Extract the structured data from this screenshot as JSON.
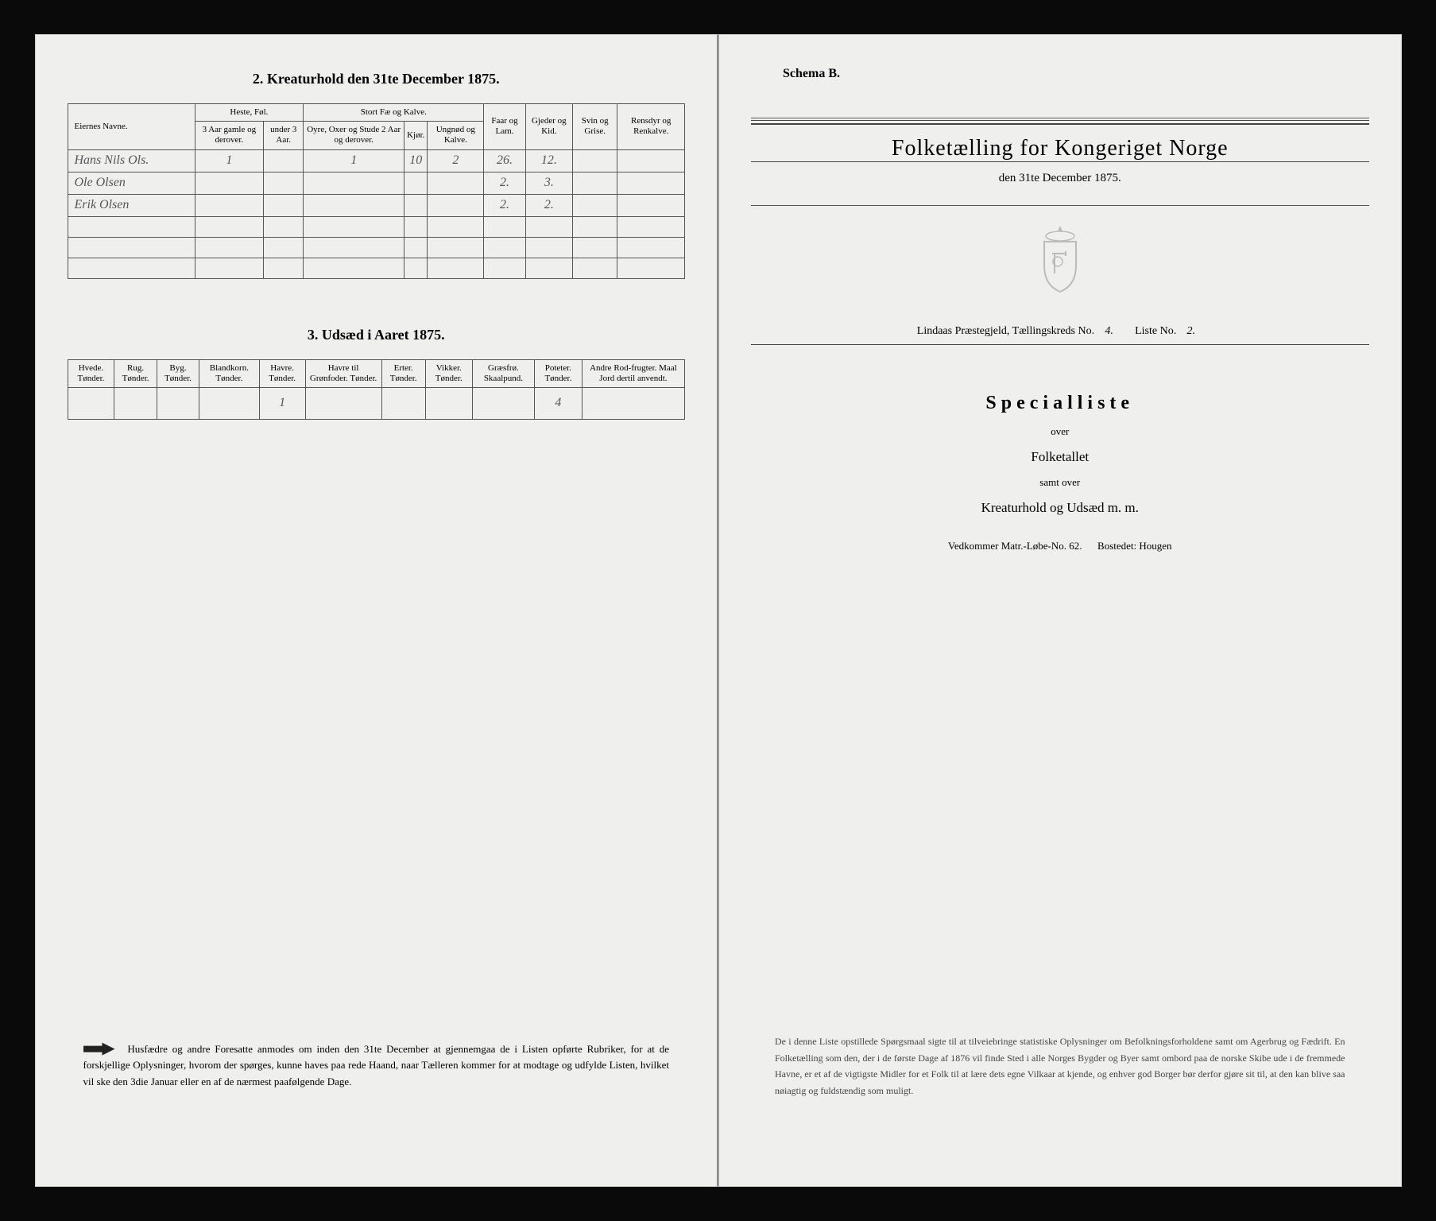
{
  "leftPage": {
    "table2": {
      "title": "2.  Kreaturhold den 31te December 1875.",
      "headers": {
        "owners": "Eiernes Navne.",
        "hesteGroup": "Heste, Føl.",
        "heste1": "3 Aar gamle og derover.",
        "heste2": "under 3 Aar.",
        "kvegGroup": "Stort Fæ og Kalve.",
        "kveg1": "Oyre, Oxer og Stude 2 Aar og derover.",
        "kveg2": "Kjør.",
        "kveg3": "Ungnød og Kalve.",
        "faar": "Faar og Lam.",
        "gjeder": "Gjeder og Kid.",
        "svin": "Svin og Grise.",
        "rensdyr": "Rensdyr og Renkalve."
      },
      "rows": [
        {
          "name": "Hans Nils Ols.",
          "h1": "1",
          "h2": "",
          "k1": "1",
          "k2": "10",
          "k3": "2",
          "faar": "26.",
          "gjed": "12.",
          "svin": "",
          "ren": ""
        },
        {
          "name": "Ole Olsen",
          "h1": "",
          "h2": "",
          "k1": "",
          "k2": "",
          "k3": "",
          "faar": "2.",
          "gjed": "3.",
          "svin": "",
          "ren": ""
        },
        {
          "name": "Erik Olsen",
          "h1": "",
          "h2": "",
          "k1": "",
          "k2": "",
          "k3": "",
          "faar": "2.",
          "gjed": "2.",
          "svin": "",
          "ren": ""
        }
      ]
    },
    "table3": {
      "title": "3.  Udsæd i Aaret 1875.",
      "headers": {
        "hvede": "Hvede. Tønder.",
        "rug": "Rug. Tønder.",
        "byg": "Byg. Tønder.",
        "blandkorn": "Blandkorn. Tønder.",
        "havre": "Havre. Tønder.",
        "havreGron": "Havre til Grønfoder. Tønder.",
        "erter": "Erter. Tønder.",
        "vikker": "Vikker. Tønder.",
        "graesfro": "Græsfrø. Skaalpund.",
        "poteter": "Poteter. Tønder.",
        "andre": "Andre Rod-frugter. Maal Jord dertil anvendt."
      },
      "row": {
        "hvede": "",
        "rug": "",
        "byg": "",
        "blandkorn": "",
        "havre": "1",
        "havreGron": "",
        "erter": "",
        "vikker": "",
        "graesfro": "",
        "poteter": "4",
        "andre": ""
      }
    },
    "footnote": "Husfædre og andre Foresatte anmodes om inden den 31te December at gjennemgaa de i Listen opførte Rubriker, for at de forskjellige Oplysninger, hvorom der spørges, kunne haves paa rede Haand, naar Tælleren kommer for at modtage og udfylde Listen, hvilket vil ske den 3die Januar eller en af de nærmest paafølgende Dage."
  },
  "rightPage": {
    "schema": "Schema B.",
    "mainTitle": "Folketælling for Kongeriget Norge",
    "subDate": "den 31te December 1875.",
    "districtLine": {
      "prefix": "Lindaas Præstegjeld,  Tællingskreds No.",
      "kredsNo": "4.",
      "listeLabel": "Liste No.",
      "listeNo": "2."
    },
    "specTitle": "Specialliste",
    "over": "over",
    "folketallet": "Folketallet",
    "samtOver": "samt over",
    "kreaturhold": "Kreaturhold og Udsæd m. m.",
    "matr": {
      "label1": "Vedkommer Matr.-Løbe-No.",
      "val1": "62.",
      "label2": "Bostedet:",
      "val2": "Hougen"
    },
    "paragraph": "De i denne Liste opstillede Spørgsmaal sigte til at tilveiebringe statistiske Oplysninger om Befolkningsforholdene samt om Agerbrug og Fædrift.  En Folketælling som den, der i de første Dage af 1876 vil finde Sted i alle Norges Bygder og Byer samt ombord paa de norske Skibe ude i de fremmede Havne, er et af de vigtigste Midler for et Folk til at lære dets egne Vilkaar at kjende, og enhver god Borger bør derfor gjøre sit til, at den kan blive saa nøiagtig og fuldstændig som muligt."
  },
  "colors": {
    "paper": "#efefed",
    "ink": "#333333",
    "frame": "#0a0a0a"
  }
}
